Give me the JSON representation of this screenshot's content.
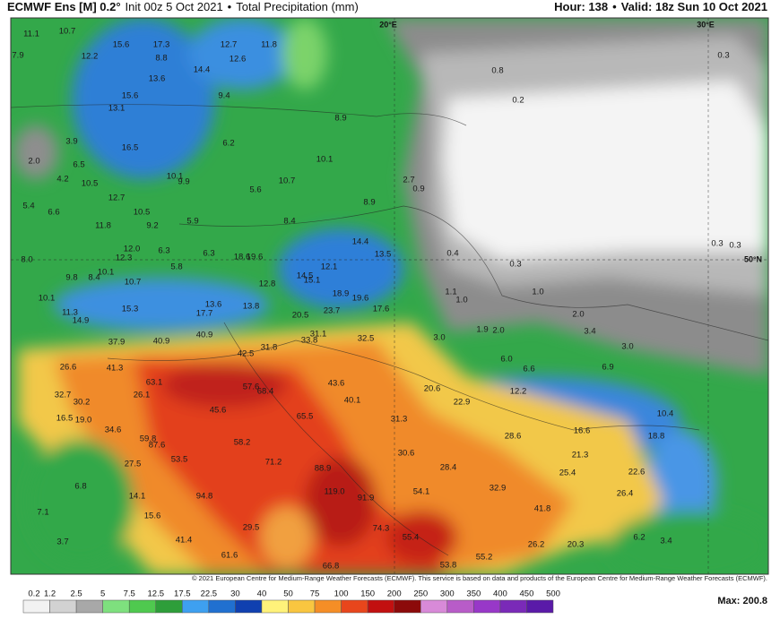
{
  "header": {
    "model": "ECMWF Ens [M] 0.2°",
    "init": "Init 00z 5 Oct 2021",
    "field": "Total Precipitation (mm)",
    "hour": "Hour: 138",
    "valid": "Valid: 18z Sun 10 Oct 2021"
  },
  "map": {
    "grid_labels": [
      "20°E",
      "30°E",
      "50°N"
    ],
    "credit": "© 2021 European Centre for Medium-Range Weather Forecasts (ECMWF). This service is based on data and products of the European Centre for Medium-Range Weather Forecasts (ECMWF).",
    "labels": [
      "11.1",
      "10.7",
      "7.9",
      "12.2",
      "15.6",
      "17.3",
      "12.7",
      "11.8",
      "14.4",
      "12.6",
      "8.8",
      "13.6",
      "15.6",
      "13.1",
      "9.4",
      "8.9",
      "6.2",
      "16.5",
      "3.9",
      "2.0",
      "6.5",
      "4.2",
      "10.5",
      "10.1",
      "9.9",
      "10.1",
      "10.7",
      "5.6",
      "12.7",
      "5.4",
      "6.6",
      "10.5",
      "9.2",
      "5.9",
      "11.8",
      "8.4",
      "8.9",
      "2.7",
      "0.9",
      "14.4",
      "13.5",
      "12.1",
      "14.5",
      "15.1",
      "18.9",
      "19.6",
      "17.6",
      "12.8",
      "18.6",
      "19.6",
      "6.3",
      "6.3",
      "12.0",
      "12.3",
      "5.8",
      "8.0",
      "10.1",
      "8.4",
      "9.8",
      "10.7",
      "10.1",
      "13.6",
      "13.8",
      "17.7",
      "11.3",
      "14.9",
      "15.3",
      "23.7",
      "20.5",
      "40.9",
      "40.9",
      "37.9",
      "33.8",
      "32.5",
      "31.1",
      "31.8",
      "42.5",
      "41.3",
      "26.6",
      "63.1",
      "57.6",
      "68.4",
      "43.6",
      "40.1",
      "32.7",
      "30.2",
      "26.1",
      "16.5",
      "19.0",
      "45.6",
      "65.5",
      "31.3",
      "28.6",
      "16.6",
      "18.8",
      "10.4",
      "22.9",
      "20.6",
      "12.2",
      "6.6",
      "6.0",
      "6.9",
      "3.0",
      "3.4",
      "2.0",
      "1.9",
      "2.0",
      "3.0",
      "1.1",
      "1.0",
      "1.0",
      "0.4",
      "0.3",
      "0.3",
      "0.3",
      "0.8",
      "0.2",
      "0.3",
      "34.6",
      "59.8",
      "87.6",
      "53.5",
      "58.2",
      "71.2",
      "88.9",
      "30.6",
      "28.4",
      "25.4",
      "21.3",
      "22.6",
      "32.9",
      "41.8",
      "26.4",
      "119.0",
      "91.9",
      "54.1",
      "27.5",
      "14.1",
      "94.8",
      "15.6",
      "6.8",
      "7.1",
      "29.5",
      "74.3",
      "55.4",
      "26.2",
      "20.3",
      "6.2",
      "3.4",
      "53.8",
      "55.2",
      "61.6",
      "66.8",
      "41.4",
      "3.7"
    ]
  },
  "legend": {
    "ticks": [
      "0.2",
      "1.2",
      "2.5",
      "5",
      "7.5",
      "12.5",
      "17.5",
      "22.5",
      "30",
      "40",
      "50",
      "75",
      "100",
      "150",
      "200",
      "250",
      "300",
      "350",
      "400",
      "450",
      "500"
    ],
    "max": "Max: 200.8"
  }
}
